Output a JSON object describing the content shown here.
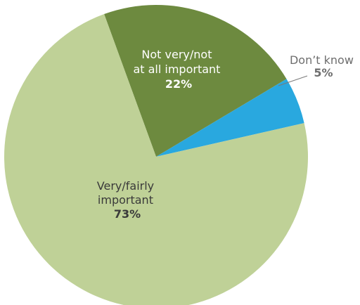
{
  "chart_data": {
    "type": "pie",
    "slices": [
      {
        "key": "very",
        "label_lines": [
          "Very/fairly",
          "important"
        ],
        "value_label": "73%",
        "value": 73,
        "color": "#bfd197",
        "text_color": "#3a3a3a"
      },
      {
        "key": "notvery",
        "label_lines": [
          "Not very/not",
          "at all important"
        ],
        "value_label": "22%",
        "value": 22,
        "color": "#6d8a3f",
        "text_color": "#ffffff"
      },
      {
        "key": "dk",
        "label_lines": [
          "Don’t know"
        ],
        "value_label": "5%",
        "value": 5,
        "color": "#29a8df",
        "text_color": "#6e6e6e"
      }
    ]
  }
}
